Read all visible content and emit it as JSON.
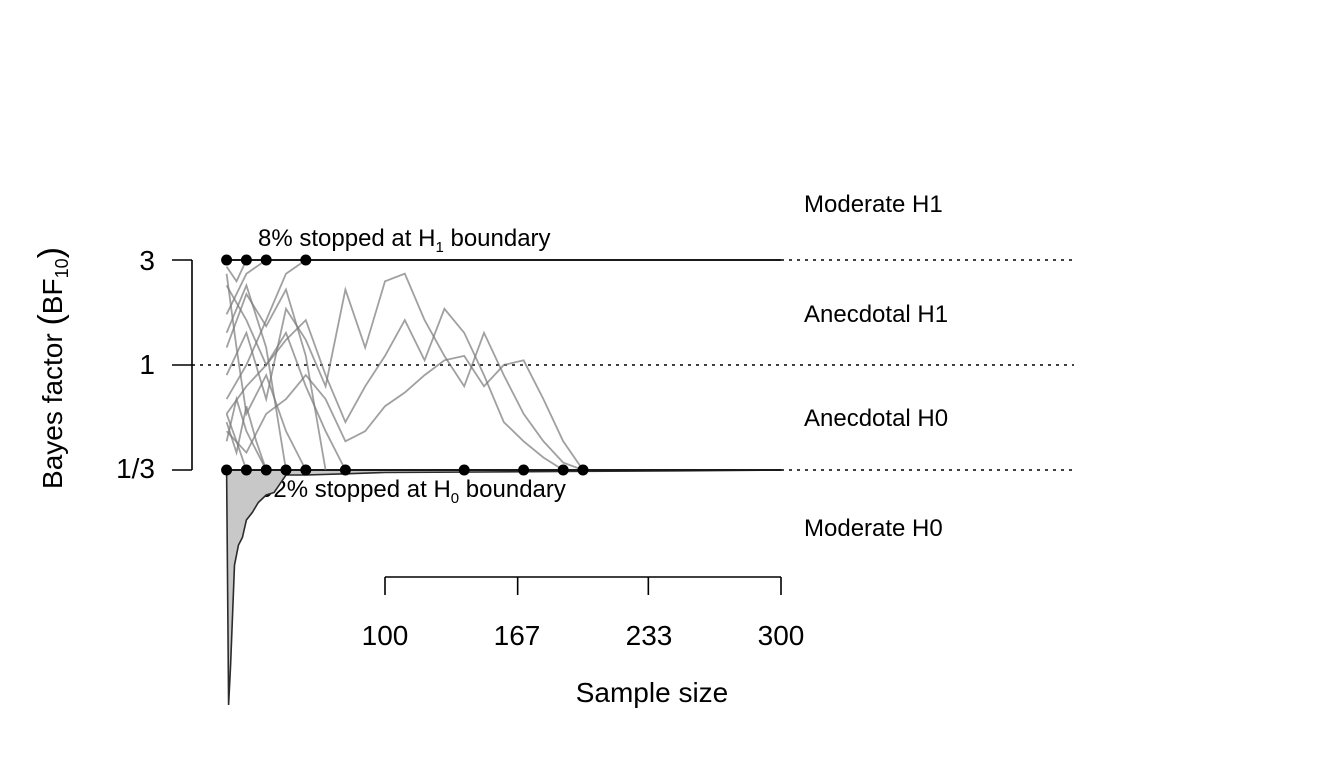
{
  "chart_data": {
    "type": "line",
    "title": "",
    "ylabel": {
      "main": "Bayes factor ",
      "sym": "BF",
      "sub": "10"
    },
    "xlabel": "Sample size",
    "x_ticks": [
      100,
      167,
      233,
      300
    ],
    "y_ticks": [
      {
        "label": "1/3",
        "value": 0.3333
      },
      {
        "label": "1",
        "value": 1
      },
      {
        "label": "3",
        "value": 3
      }
    ],
    "ylim": [
      0.0123,
      11.4
    ],
    "xlim": [
      0,
      600
    ],
    "log_y": true,
    "grid": false,
    "reference_lines": [
      {
        "value": 3,
        "style": "dotted"
      },
      {
        "value": 1,
        "style": "dotted"
      },
      {
        "value": 0.3333,
        "style": "dotted"
      }
    ],
    "zones": [
      {
        "label": "Moderate H1",
        "y": 5.3
      },
      {
        "label": "Anecdotal H1",
        "y": 1.75
      },
      {
        "label": "Anecdotal H0",
        "y": 0.58
      },
      {
        "label": "Moderate H0",
        "y": 0.19
      }
    ],
    "annotations": {
      "h1": {
        "pre": "8% stopped at H",
        "sub": "1",
        "post": " boundary",
        "value": 0.08
      },
      "h0": {
        "pre": "92% stopped at H",
        "sub": "0",
        "post": " boundary",
        "value": 0.92
      }
    },
    "stopped_at_h1_n": [
      20,
      30,
      40,
      60
    ],
    "stopped_at_h0_n": [
      20,
      30,
      40,
      50,
      60,
      80,
      140,
      170,
      190,
      200
    ],
    "trajectories": [
      {
        "x": [
          20,
          30,
          40,
          50,
          60,
          70,
          80,
          90,
          100,
          110,
          120,
          130,
          140,
          150,
          160,
          170,
          180,
          190,
          200
        ],
        "y": [
          0.9,
          1.4,
          0.7,
          1.8,
          1.3,
          0.8,
          2.2,
          1.2,
          2.4,
          2.6,
          1.6,
          1.1,
          0.8,
          1.4,
          0.9,
          0.6,
          0.45,
          0.36,
          0.3333
        ]
      },
      {
        "x": [
          20,
          30,
          40,
          50,
          60,
          70,
          80,
          90,
          100,
          110,
          120,
          130,
          140,
          150,
          160,
          170,
          180,
          190
        ],
        "y": [
          0.6,
          0.8,
          1.0,
          1.3,
          1.6,
          0.9,
          0.55,
          0.8,
          1.1,
          1.6,
          1.05,
          1.8,
          1.4,
          0.9,
          0.55,
          0.45,
          0.38,
          0.3333
        ]
      },
      {
        "x": [
          20,
          30,
          40,
          50,
          60,
          70,
          80,
          90,
          100,
          110,
          120,
          130,
          140,
          150,
          160,
          170,
          180,
          190,
          200
        ],
        "y": [
          0.5,
          0.4,
          0.6,
          0.7,
          0.9,
          0.7,
          0.45,
          0.5,
          0.65,
          0.75,
          0.9,
          1.05,
          1.1,
          0.8,
          1.0,
          1.05,
          0.7,
          0.45,
          0.3333
        ]
      },
      {
        "x": [
          20,
          30,
          40,
          50,
          60,
          70,
          80
        ],
        "y": [
          2.3,
          1.6,
          1.0,
          1.4,
          0.8,
          0.5,
          0.3333
        ]
      },
      {
        "x": [
          20,
          30,
          40,
          50,
          60,
          70
        ],
        "y": [
          1.2,
          2.1,
          1.5,
          2.2,
          1.1,
          0.3333
        ]
      },
      {
        "x": [
          20,
          25,
          30,
          40,
          50,
          60
        ],
        "y": [
          2.6,
          1.2,
          0.6,
          0.9,
          0.5,
          0.3333
        ]
      },
      {
        "x": [
          20,
          30,
          40,
          50
        ],
        "y": [
          1.4,
          2.3,
          1.2,
          0.3333
        ]
      },
      {
        "x": [
          20,
          25,
          30,
          40
        ],
        "y": [
          0.45,
          0.7,
          0.5,
          0.3333
        ]
      },
      {
        "x": [
          20,
          25,
          30,
          35,
          40
        ],
        "y": [
          0.55,
          0.4,
          0.65,
          0.45,
          0.3333
        ]
      },
      {
        "x": [
          20,
          25,
          30
        ],
        "y": [
          0.6,
          0.45,
          0.3333
        ]
      },
      {
        "x": [
          20,
          30,
          40,
          50,
          60
        ],
        "y": [
          0.7,
          1.0,
          1.6,
          2.6,
          3.0
        ]
      },
      {
        "x": [
          20,
          30,
          40
        ],
        "y": [
          1.7,
          2.6,
          3.0
        ]
      },
      {
        "x": [
          20,
          25,
          30
        ],
        "y": [
          2.8,
          2.4,
          3.0
        ]
      }
    ],
    "h0_density": {
      "n": [
        20,
        21,
        22,
        24,
        26,
        28,
        30,
        33,
        36,
        40,
        44,
        50,
        60,
        80,
        100,
        150,
        200,
        250,
        300
      ],
      "depth": [
        0,
        0.94,
        0.78,
        0.38,
        0.3,
        0.27,
        0.2,
        0.17,
        0.13,
        0.1,
        0.09,
        0.02,
        0.02,
        0.015,
        0.01,
        0.008,
        0.005,
        0.003,
        0
      ]
    }
  }
}
